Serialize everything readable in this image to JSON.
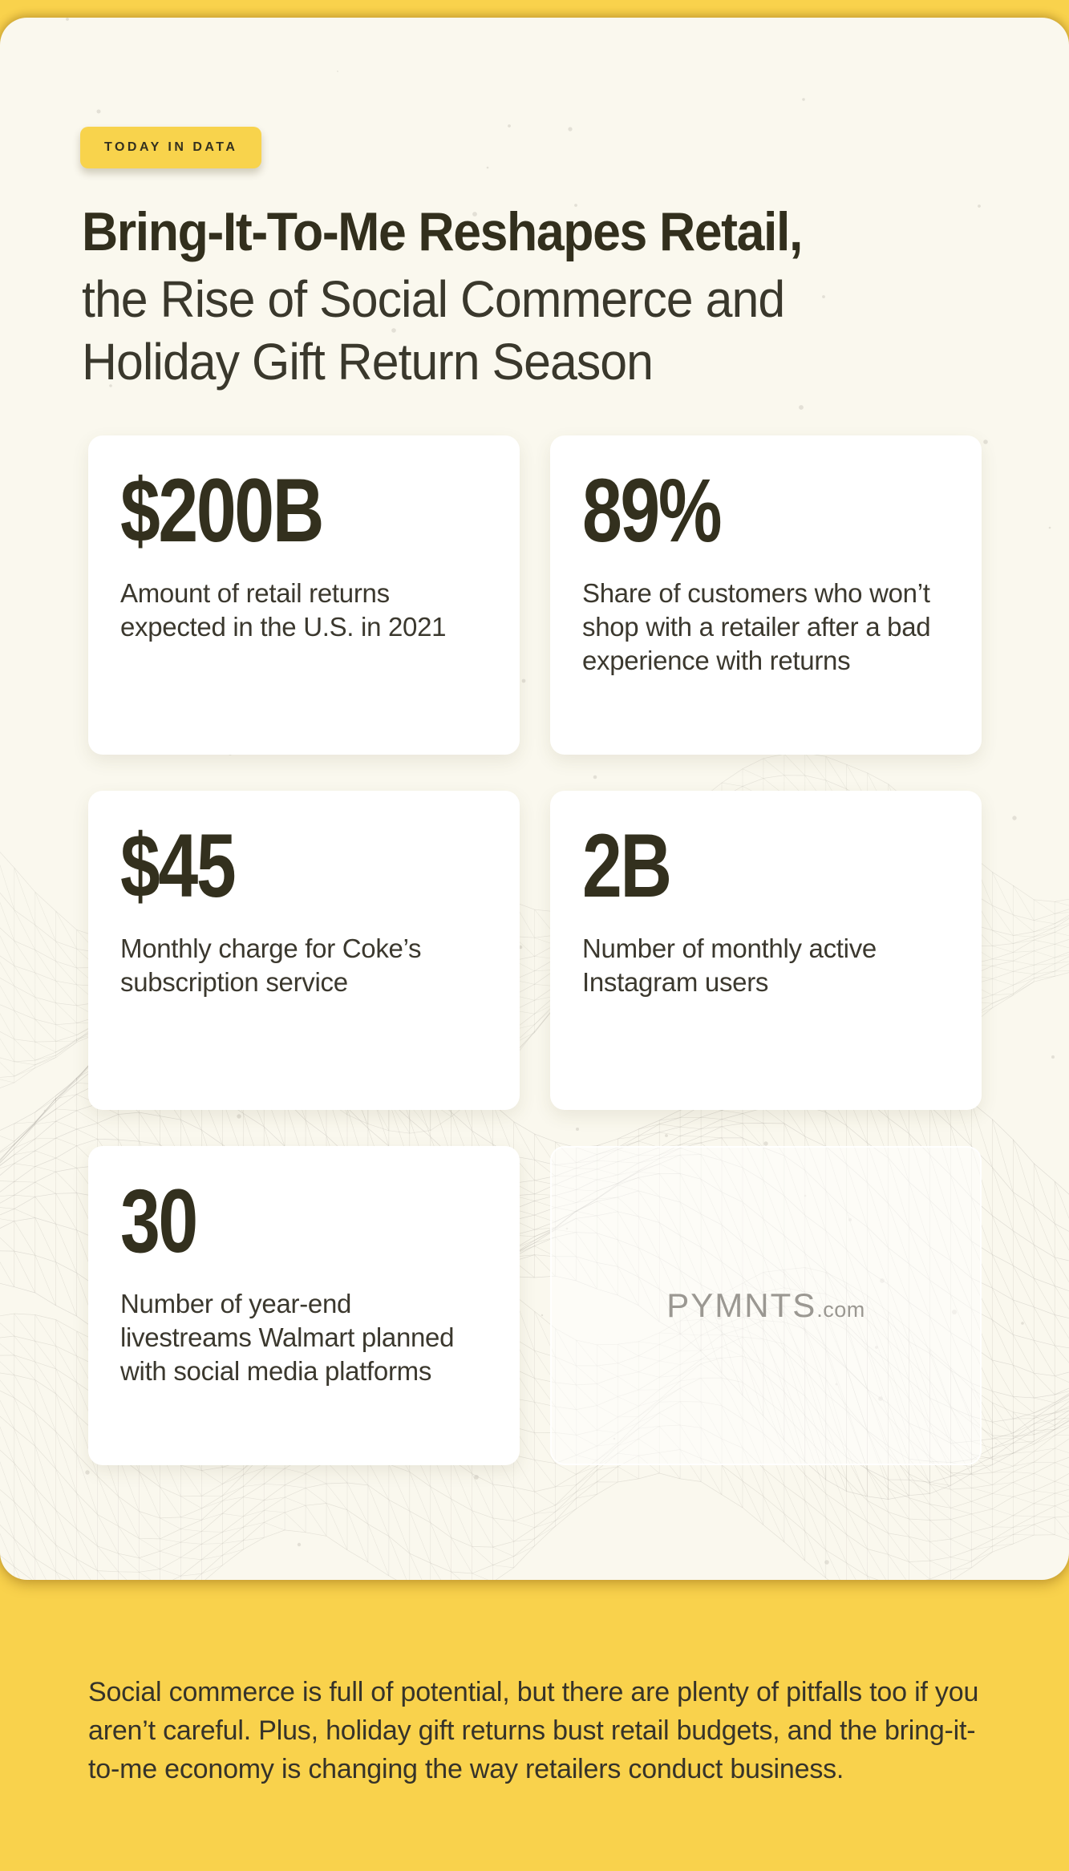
{
  "header": {
    "badge": "TODAY IN DATA",
    "title_bold": "Bring-It-To-Me Reshapes Retail,",
    "title_light": "the Rise of Social Commerce and\nHoliday Gift Return Season"
  },
  "stats": [
    {
      "value": "$200B",
      "label": "Amount of retail returns\nexpected in the U.S. in 2021"
    },
    {
      "value": "89%",
      "label": "Share of customers who won’t\nshop with a retailer after a bad\nexperience with returns"
    },
    {
      "value": "$45",
      "label": "Monthly charge for Coke’s\nsubscription service"
    },
    {
      "value": "2B",
      "label": "Number of monthly active\nInstagram users"
    },
    {
      "value": "30",
      "label": "Number of year-end\nlivestreams Walmart planned\nwith social media platforms"
    }
  ],
  "watermark": {
    "brand": "PYMNTS",
    "suffix": ".com"
  },
  "footer": {
    "text": "Social commerce is full of potential, but there are plenty of pitfalls too if you\naren’t careful. Plus, holiday gift returns bust retail budgets, and the bring-it-\nto-me economy is changing the way retailers conduct business."
  },
  "colors": {
    "background_yellow": "#F9D24C",
    "badge_yellow": "#F8D34C",
    "sheet_cream": "#FAF8EE",
    "card_white": "#FFFFFF",
    "ink_dark": "#33301E",
    "watermark_gray": "#9B9892"
  }
}
